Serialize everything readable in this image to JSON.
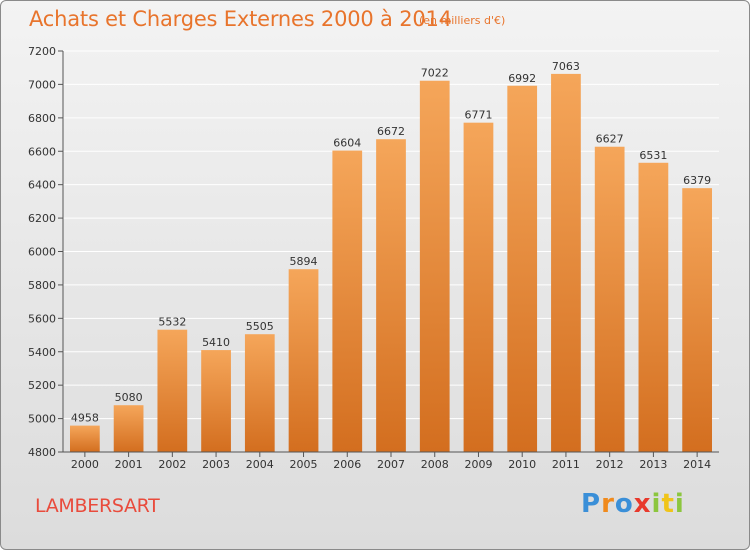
{
  "title": "Achats et Charges Externes 2000 à 2014",
  "subtitle": "(en milliers d'€)",
  "city": "LAMBERSART",
  "logo": {
    "text": "Proxiti",
    "colors": [
      "#3a8fd8",
      "#f08a1c",
      "#3a8fd8",
      "#e8392c",
      "#8cc63e",
      "#f0c419",
      "#8cc63e"
    ]
  },
  "colors": {
    "bar_top": "#f5a65a",
    "bar_bottom": "#d36e1f",
    "title": "#e8742c",
    "city": "#e94b3c",
    "grid": "#ffffff"
  },
  "chart_data": {
    "type": "bar",
    "categories": [
      "2000",
      "2001",
      "2002",
      "2003",
      "2004",
      "2005",
      "2006",
      "2007",
      "2008",
      "2009",
      "2010",
      "2011",
      "2012",
      "2013",
      "2014"
    ],
    "values": [
      4958,
      5080,
      5532,
      5410,
      5505,
      5894,
      6604,
      6672,
      7022,
      6771,
      6992,
      7063,
      6627,
      6531,
      6379
    ],
    "title": "Achats et Charges Externes 2000 à 2014",
    "xlabel": "",
    "ylabel": "",
    "ylim": [
      4800,
      7200
    ],
    "yticks": [
      4800,
      5000,
      5200,
      5400,
      5600,
      5800,
      6000,
      6200,
      6400,
      6600,
      6800,
      7000,
      7200
    ],
    "grid": true,
    "data_labels": true
  }
}
